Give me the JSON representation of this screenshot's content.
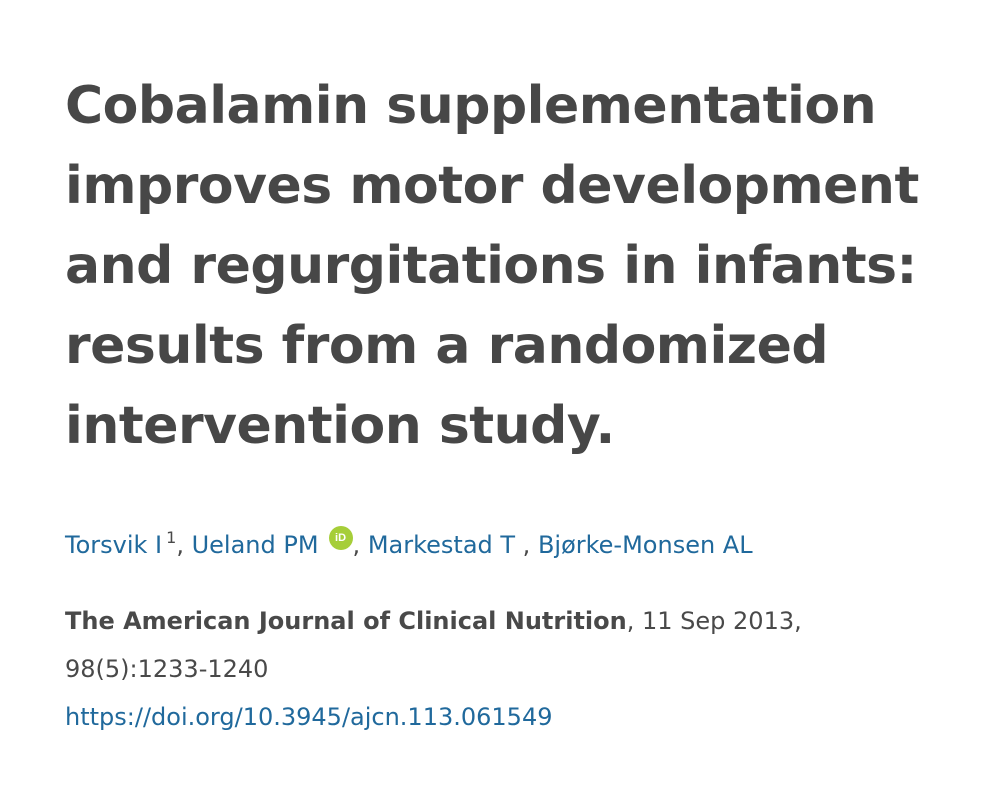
{
  "article": {
    "title": "Cobalamin supplementation improves motor development and regurgitations in infants: results from a randomized intervention study.",
    "authors": [
      {
        "name": "Torsvik I",
        "sup": "1"
      },
      {
        "name": "Ueland PM",
        "orcid": "iD"
      },
      {
        "name": "Markestad T"
      },
      {
        "name": "Bjørke-Monsen AL"
      }
    ],
    "journal": "The American Journal of Clinical Nutrition",
    "date": ", 11 Sep 2013,",
    "volume_pages": "98(5):1233-1240",
    "doi": "https://doi.org/10.3945/ajcn.113.061549",
    "colors": {
      "link": "#20699c",
      "orcid": "#a6ce39",
      "text": "#494949"
    }
  }
}
